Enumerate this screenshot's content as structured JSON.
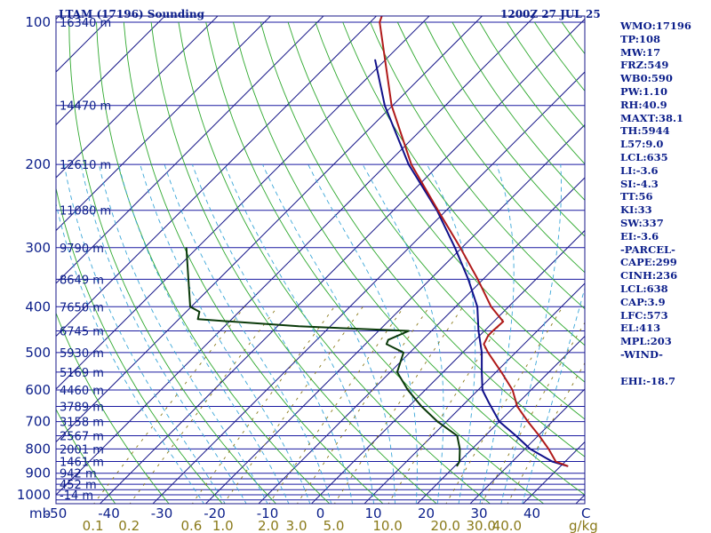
{
  "header": {
    "station": "LTAM (17196) Sounding",
    "time": "1200Z 27 JUL 25"
  },
  "indices": [
    "WMO:17196",
    "TP:108",
    "MW:17",
    "FRZ:549",
    "WB0:590",
    "PW:1.10",
    "RH:40.9",
    "MAXT:38.1",
    "TH:5944",
    "L57:9.0",
    "LCL:635",
    "LI:-3.6",
    "SI:-4.3",
    "TT:56",
    "KI:33",
    "SW:337",
    "EI:-3.6",
    "-PARCEL-",
    "CAPE:299",
    "CINH:236",
    "LCL:638",
    "CAP:3.9",
    "LFC:573",
    "EL:413",
    "MPL:203",
    "-WIND-",
    "",
    "EHI:-18.7"
  ],
  "colors": {
    "frame": "#1a1a8a",
    "isobar": "#1a1aa0",
    "isotherm": "#1a1a8a",
    "dry_adiabat": "#2ea82e",
    "moist_adiabat": "#2ea82e",
    "mixing_ratio": "#8a7a1a",
    "parcel_moist": "#3aa6d8",
    "temperature": "#b01a1a",
    "dewpoint": "#0a3a0a",
    "parcel_path": "#10108a"
  },
  "chart_data": {
    "type": "skew-T log-p",
    "title": "LTAM (17196) Sounding",
    "subtitle": "1200Z 27 JUL 25",
    "p_axis_label": "mb",
    "t_axis_label": "C",
    "p_ticks": [
      100,
      200,
      300,
      400,
      500,
      600,
      700,
      800,
      900,
      1000
    ],
    "p_range": [
      100,
      1050
    ],
    "t_ticks": [
      -50,
      -40,
      -30,
      -20,
      -10,
      0,
      10,
      20,
      30,
      40
    ],
    "t_range_at_surface": [
      -50,
      50
    ],
    "mixing_ratio_label": "g/kg",
    "mixing_ratio_ticks": [
      "0.1",
      "0.2",
      "0.6",
      "1.0",
      "2.0",
      "3.0",
      "5.0",
      "10.0",
      "20.0",
      "30.0",
      "40.0"
    ],
    "isobars_mb": [
      100,
      150,
      200,
      250,
      300,
      350,
      400,
      450,
      500,
      550,
      600,
      650,
      700,
      750,
      800,
      850,
      900,
      925,
      950,
      975,
      1000,
      1025,
      1050
    ],
    "height_labels": [
      {
        "p": 100,
        "h": "16340 m"
      },
      {
        "p": 150,
        "h": "14470 m"
      },
      {
        "p": 200,
        "h": "12610 m"
      },
      {
        "p": 250,
        "h": "11080 m"
      },
      {
        "p": 300,
        "h": "9790 m"
      },
      {
        "p": 350,
        "h": "8649 m"
      },
      {
        "p": 400,
        "h": "7650 m"
      },
      {
        "p": 450,
        "h": "6745 m"
      },
      {
        "p": 500,
        "h": "5930 m"
      },
      {
        "p": 550,
        "h": "5169 m"
      },
      {
        "p": 600,
        "h": "4460 m"
      },
      {
        "p": 650,
        "h": "3789 m"
      },
      {
        "p": 700,
        "h": "3158 m"
      },
      {
        "p": 750,
        "h": "2567 m"
      },
      {
        "p": 800,
        "h": "2001 m"
      },
      {
        "p": 850,
        "h": "1461 m"
      },
      {
        "p": 900,
        "h": "942 m"
      },
      {
        "p": 950,
        "h": "452 m"
      },
      {
        "p": 1000,
        "h": "-14 m"
      }
    ],
    "temperature": [
      {
        "p": 870,
        "t": 41.4
      },
      {
        "p": 850,
        "t": 38.2
      },
      {
        "p": 800,
        "t": 34.5
      },
      {
        "p": 750,
        "t": 30.2
      },
      {
        "p": 700,
        "t": 25.4
      },
      {
        "p": 650,
        "t": 20.5
      },
      {
        "p": 600,
        "t": 16.5
      },
      {
        "p": 550,
        "t": 11.0
      },
      {
        "p": 500,
        "t": 4.8
      },
      {
        "p": 480,
        "t": 2.4
      },
      {
        "p": 460,
        "t": 1.6
      },
      {
        "p": 450,
        "t": 1.6
      },
      {
        "p": 430,
        "t": 1.8
      },
      {
        "p": 400,
        "t": -3.3
      },
      {
        "p": 350,
        "t": -11.0
      },
      {
        "p": 300,
        "t": -20.3
      },
      {
        "p": 250,
        "t": -31.6
      },
      {
        "p": 200,
        "t": -45.3
      },
      {
        "p": 150,
        "t": -60.2
      },
      {
        "p": 100,
        "t": -78.2
      },
      {
        "p": 95,
        "t": -79.5
      }
    ],
    "dewpoint": [
      {
        "p": 870,
        "t": 20.4
      },
      {
        "p": 850,
        "t": 20.0
      },
      {
        "p": 800,
        "t": 17.7
      },
      {
        "p": 750,
        "t": 14.7
      },
      {
        "p": 700,
        "t": 8.3
      },
      {
        "p": 650,
        "t": 2.4
      },
      {
        "p": 600,
        "t": -3.3
      },
      {
        "p": 550,
        "t": -8.7
      },
      {
        "p": 500,
        "t": -11.2
      },
      {
        "p": 480,
        "t": -16.0
      },
      {
        "p": 470,
        "t": -16.5
      },
      {
        "p": 450,
        "t": -14.3
      },
      {
        "p": 440,
        "t": -36.0
      },
      {
        "p": 425,
        "t": -56.4
      },
      {
        "p": 410,
        "t": -57.5
      },
      {
        "p": 400,
        "t": -60.2
      },
      {
        "p": 300,
        "t": -72.1
      }
    ],
    "parcel": [
      {
        "p": 870,
        "t": 41.4
      },
      {
        "p": 850,
        "t": 37.5
      },
      {
        "p": 800,
        "t": 31.0
      },
      {
        "p": 750,
        "t": 25.8
      },
      {
        "p": 700,
        "t": 20.0
      },
      {
        "p": 638,
        "t": 14.4
      },
      {
        "p": 600,
        "t": 10.8
      },
      {
        "p": 550,
        "t": 7.3
      },
      {
        "p": 500,
        "t": 3.6
      },
      {
        "p": 450,
        "t": -1.1
      },
      {
        "p": 400,
        "t": -5.9
      },
      {
        "p": 350,
        "t": -12.8
      },
      {
        "p": 300,
        "t": -21.3
      },
      {
        "p": 250,
        "t": -31.8
      },
      {
        "p": 200,
        "t": -45.8
      },
      {
        "p": 150,
        "t": -61.5
      },
      {
        "p": 120,
        "t": -72.0
      }
    ]
  }
}
